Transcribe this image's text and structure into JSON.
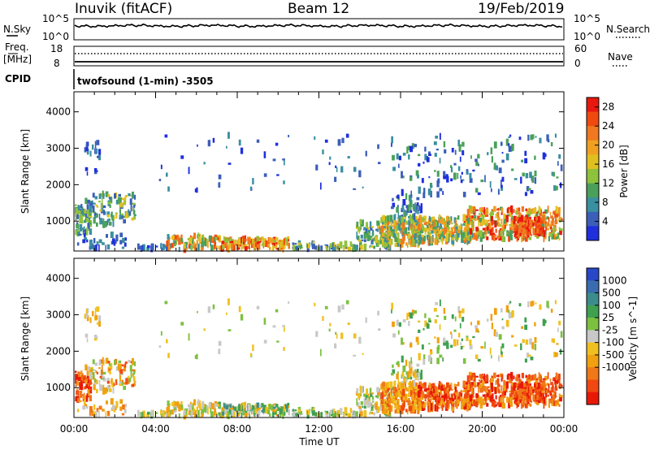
{
  "header": {
    "station": "Inuvik (fitACF)",
    "beam": "Beam 12",
    "date": "19/Feb/2019"
  },
  "strip": {
    "nsky_label": "N.Sky",
    "nsky_ticks": [
      "10^5",
      "10^0"
    ],
    "nsearch_label": "N.Search",
    "nsearch_ticks": [
      "10^5",
      "10^0"
    ],
    "freq_label_1": "Freq.",
    "freq_label_2": "[MHz]",
    "freq_ticks": [
      "18",
      "8"
    ],
    "nave_label": "Nave",
    "nave_ticks": [
      "60",
      "0"
    ],
    "cpid_label": "CPID",
    "cpid_value": "twofsound (1-min) -3505"
  },
  "colors": {
    "power": [
      "#1f2fdc",
      "#3b5fb8",
      "#3a8fa0",
      "#4aa05a",
      "#8fc23c",
      "#e0c020",
      "#f0a020",
      "#f07820",
      "#f04a10",
      "#e81810"
    ],
    "velocity": [
      "#2848c8",
      "#3a6cb0",
      "#3c8c8c",
      "#3fa050",
      "#7cc040",
      "#c8c8c8",
      "#f0c020",
      "#f0a010",
      "#f07818",
      "#f04810",
      "#e81808"
    ]
  },
  "chart_data": [
    {
      "type": "heatmap",
      "name": "power",
      "ylabel": "Slant Range [km]",
      "yticks": [
        1000,
        2000,
        3000,
        4000
      ],
      "ylim": [
        180,
        4550
      ],
      "xlim": [
        0,
        24
      ],
      "colorbar_label": "Power [dB]",
      "colorbar_ticks": [
        "4",
        "8",
        "12",
        "16",
        "20",
        "24",
        "28"
      ],
      "colorbar_range": [
        0,
        30
      ]
    },
    {
      "type": "heatmap",
      "name": "velocity",
      "ylabel": "Slant Range [km]",
      "yticks": [
        1000,
        2000,
        3000,
        4000
      ],
      "ylim": [
        180,
        4550
      ],
      "xlim": [
        0,
        24
      ],
      "xlabel": "Time UT",
      "xticks": [
        "00:00",
        "04:00",
        "08:00",
        "12:00",
        "16:00",
        "20:00",
        "00:00"
      ],
      "colorbar_label": "Velocity [m s^-1]",
      "colorbar_ticks": [
        "1000",
        "500",
        "100",
        "25",
        "-25",
        "-100",
        "-500",
        "-1000"
      ]
    }
  ]
}
